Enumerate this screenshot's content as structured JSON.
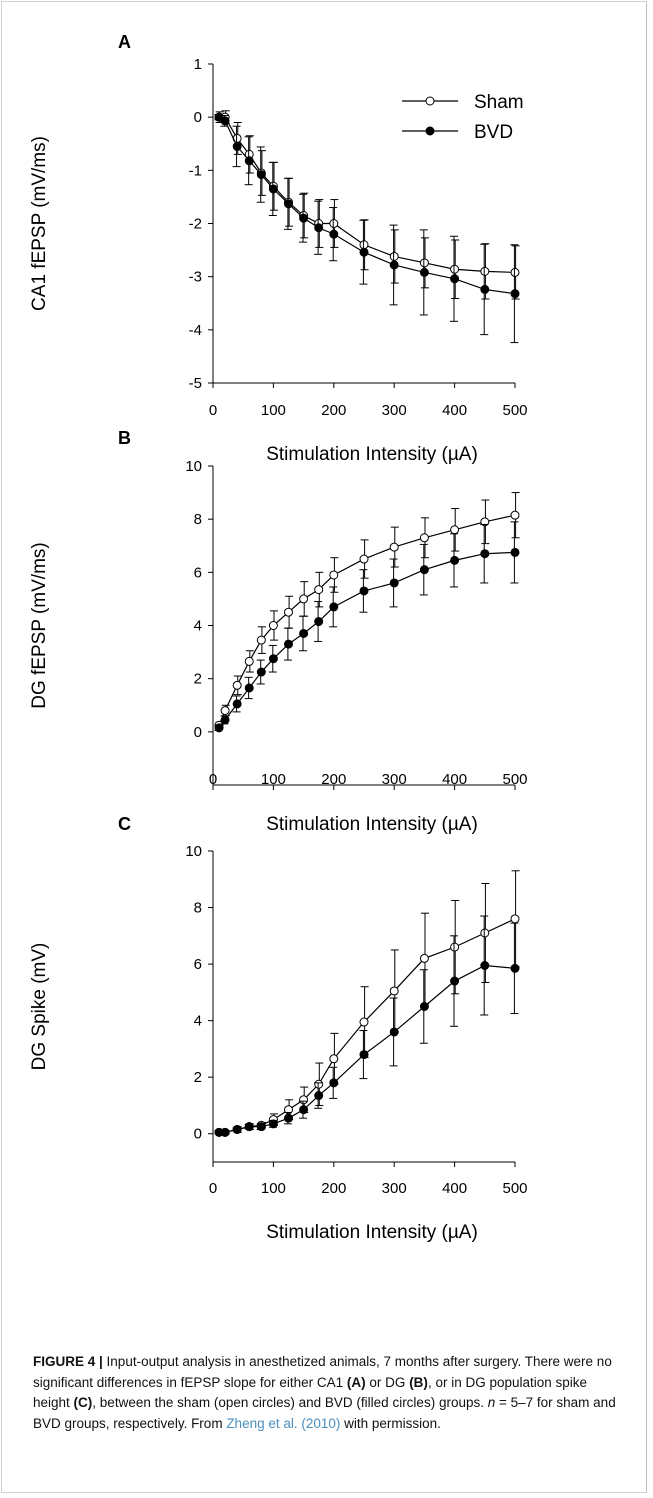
{
  "chart_data": [
    {
      "type": "line",
      "panel_label": "A",
      "ylabel": "CA1 fEPSP (mV/ms)",
      "xlabel": "Stimulation Intensity (µA)",
      "xlim": [
        0,
        500
      ],
      "ylim": [
        -5,
        1
      ],
      "xticks": [
        "0",
        "100",
        "200",
        "300",
        "400",
        "500"
      ],
      "yticks": [
        "1",
        "0",
        "-1",
        "-2",
        "-3",
        "-4",
        "-5"
      ],
      "legend": "top-right",
      "grid": false,
      "x": [
        10,
        20,
        40,
        60,
        80,
        100,
        125,
        150,
        175,
        200,
        250,
        300,
        350,
        400,
        450,
        500
      ],
      "series": [
        {
          "name": "Sham",
          "marker": "open-circle",
          "values": [
            0,
            0,
            -0.4,
            -0.7,
            -1.05,
            -1.3,
            -1.6,
            -1.85,
            -2.0,
            -2.0,
            -2.4,
            -2.62,
            -2.74,
            -2.86,
            -2.9,
            -2.92
          ],
          "error": [
            0.1,
            0.12,
            0.3,
            0.35,
            0.42,
            0.45,
            0.45,
            0.42,
            0.45,
            0.45,
            0.47,
            0.5,
            0.47,
            0.55,
            0.52,
            0.5
          ]
        },
        {
          "name": "BVD",
          "marker": "filled-circle",
          "values": [
            0,
            -0.07,
            -0.55,
            -0.82,
            -1.08,
            -1.35,
            -1.63,
            -1.9,
            -2.08,
            -2.2,
            -2.54,
            -2.78,
            -2.92,
            -3.04,
            -3.24,
            -3.32
          ],
          "error": [
            0.05,
            0.1,
            0.38,
            0.45,
            0.52,
            0.5,
            0.48,
            0.45,
            0.5,
            0.5,
            0.6,
            0.75,
            0.8,
            0.8,
            0.85,
            0.92
          ]
        }
      ]
    },
    {
      "type": "line",
      "panel_label": "B",
      "ylabel": "DG fEPSP (mV/ms)",
      "xlabel": "Stimulation Intensity (µA)",
      "xlim": [
        0,
        500
      ],
      "ylim": [
        -2,
        10
      ],
      "xticks": [
        "0",
        "100",
        "200",
        "300",
        "400",
        "500"
      ],
      "yticks": [
        "10",
        "8",
        "6",
        "4",
        "2",
        "0"
      ],
      "grid": false,
      "x": [
        10,
        20,
        40,
        60,
        80,
        100,
        125,
        150,
        175,
        200,
        250,
        300,
        350,
        400,
        450,
        500
      ],
      "series": [
        {
          "name": "Sham",
          "marker": "open-circle",
          "values": [
            0.25,
            0.8,
            1.75,
            2.65,
            3.45,
            4.0,
            4.5,
            5.0,
            5.35,
            5.9,
            6.5,
            6.95,
            7.3,
            7.6,
            7.9,
            8.15
          ],
          "error": [
            0.1,
            0.2,
            0.35,
            0.4,
            0.5,
            0.55,
            0.6,
            0.65,
            0.65,
            0.65,
            0.72,
            0.75,
            0.75,
            0.8,
            0.82,
            0.85
          ]
        },
        {
          "name": "BVD",
          "marker": "filled-circle",
          "values": [
            0.15,
            0.45,
            1.05,
            1.65,
            2.25,
            2.75,
            3.3,
            3.7,
            4.15,
            4.7,
            5.3,
            5.6,
            6.1,
            6.45,
            6.7,
            6.75
          ],
          "error": [
            0.1,
            0.15,
            0.3,
            0.4,
            0.45,
            0.5,
            0.6,
            0.65,
            0.75,
            0.75,
            0.8,
            0.9,
            0.95,
            1.0,
            1.1,
            1.15
          ]
        }
      ]
    },
    {
      "type": "line",
      "panel_label": "C",
      "ylabel": "DG Spike (mV)",
      "xlabel": "Stimulation Intensity (µA)",
      "xlim": [
        0,
        500
      ],
      "ylim": [
        -1,
        10
      ],
      "xticks": [
        "0",
        "100",
        "200",
        "300",
        "400",
        "500"
      ],
      "yticks": [
        "10",
        "8",
        "6",
        "4",
        "2",
        "0"
      ],
      "grid": false,
      "x": [
        10,
        20,
        40,
        60,
        80,
        100,
        125,
        150,
        175,
        200,
        250,
        300,
        350,
        400,
        450,
        500
      ],
      "series": [
        {
          "name": "Sham",
          "marker": "open-circle",
          "values": [
            0.05,
            0.05,
            0.15,
            0.25,
            0.3,
            0.5,
            0.85,
            1.2,
            1.75,
            2.65,
            3.95,
            5.05,
            6.2,
            6.6,
            7.1,
            7.6
          ],
          "error": [
            0.05,
            0.05,
            0.1,
            0.1,
            0.1,
            0.2,
            0.35,
            0.45,
            0.75,
            0.9,
            1.25,
            1.45,
            1.6,
            1.65,
            1.75,
            1.7
          ]
        },
        {
          "name": "BVD",
          "marker": "filled-circle",
          "values": [
            0.05,
            0.05,
            0.15,
            0.25,
            0.25,
            0.35,
            0.55,
            0.85,
            1.35,
            1.8,
            2.8,
            3.6,
            4.5,
            5.4,
            5.95,
            5.85
          ],
          "error": [
            0.05,
            0.05,
            0.05,
            0.08,
            0.1,
            0.12,
            0.2,
            0.3,
            0.45,
            0.55,
            0.85,
            1.2,
            1.3,
            1.6,
            1.75,
            1.6
          ]
        }
      ]
    }
  ],
  "caption": {
    "lead": "FIGURE 4 | ",
    "seg1": "Input-output analysis in anesthetized animals, 7 months after surgery. There were no significant differences in fEPSP slope for either CA1 ",
    "boldA": "(A)",
    "seg2": " or DG ",
    "boldB": "(B)",
    "seg3": ", or in DG population spike height ",
    "boldC": "(C)",
    "seg4": ", between the sham (open circles) and BVD (filled circles) groups. ",
    "n_var": "n",
    "seg5": " = 5–7 for sham and BVD groups, respectively. From ",
    "link": "Zheng et al. (2010)",
    "seg6": " with permission."
  },
  "colors": {
    "line": "#000000",
    "link": "#4a8fbf",
    "frame": "#cfcfcf"
  }
}
